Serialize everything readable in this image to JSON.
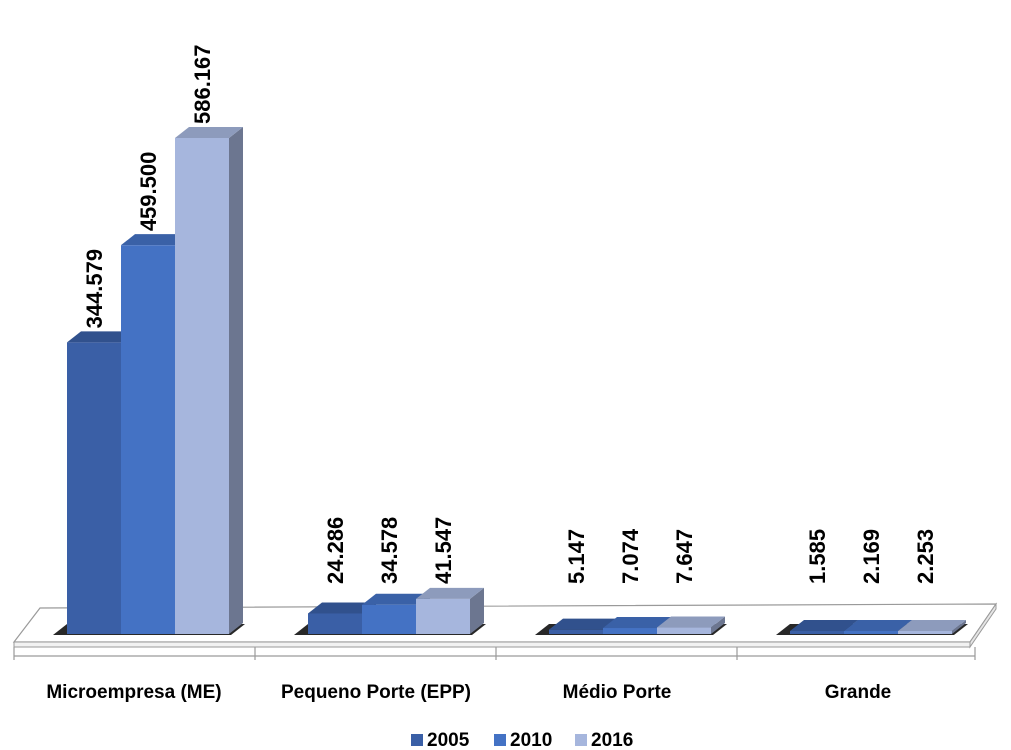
{
  "chart_data": {
    "type": "bar",
    "categories": [
      "Microempresa (ME)",
      "Pequeno Porte (EPP)",
      "Médio Porte",
      "Grande"
    ],
    "series": [
      {
        "name": "2005",
        "values": [
          344579,
          24286,
          5147,
          1585
        ],
        "labels": [
          "344.579",
          "24.286",
          "5.147",
          "1.585"
        ]
      },
      {
        "name": "2010",
        "values": [
          459500,
          34578,
          7074,
          2169
        ],
        "labels": [
          "459.500",
          "34.578",
          "7.074",
          "2.169"
        ]
      },
      {
        "name": "2016",
        "values": [
          586167,
          41547,
          7647,
          2253
        ],
        "labels": [
          "586.167",
          "41.547",
          "7.647",
          "2.253"
        ]
      }
    ],
    "title": "",
    "xlabel": "",
    "ylabel": "",
    "ylim": [
      0,
      600000
    ],
    "grid": false,
    "legend": "bottom-center",
    "style": "3d-column"
  },
  "colors": {
    "2005": "#3A5FA6",
    "2010": "#4472C4",
    "2016": "#A6B6DD"
  }
}
